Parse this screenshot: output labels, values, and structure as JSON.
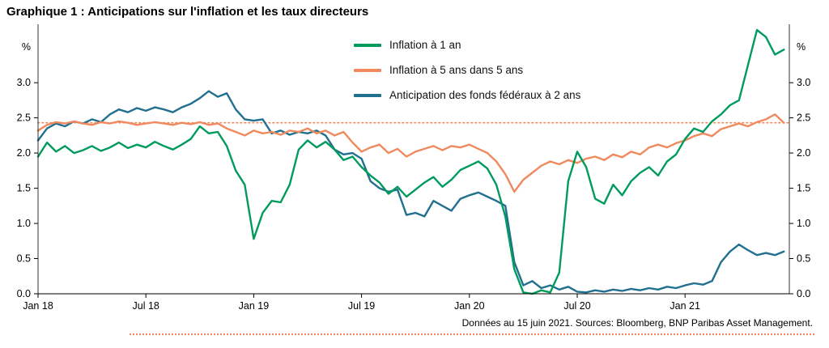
{
  "title": "Graphique 1 : Anticipations sur l'inflation et les taux directeurs",
  "footnote": "Données au 15 juin 2021. Sources: Bloomberg, BNP Paribas Asset Management.",
  "colors": {
    "green": "#009b5d",
    "orange": "#f08a5e",
    "blue": "#21708f",
    "axis": "#000000"
  },
  "chart_data": {
    "type": "line",
    "title": "Graphique 1 : Anticipations sur l'inflation et les taux directeurs",
    "x_unit": "months since Jan 2018",
    "x_start": 0,
    "x_step": 0.5,
    "xlim": [
      0,
      41.8
    ],
    "ylim": [
      0,
      3.83
    ],
    "y_unit": "%",
    "grid": false,
    "legend_position": "top-center-inside",
    "x_ticks": [
      {
        "pos": 0,
        "label": "Jan 18"
      },
      {
        "pos": 6,
        "label": "Jul 18"
      },
      {
        "pos": 12,
        "label": "Jan 19"
      },
      {
        "pos": 18,
        "label": "Jul 19"
      },
      {
        "pos": 24,
        "label": "Jan 20"
      },
      {
        "pos": 30,
        "label": "Jul 20"
      },
      {
        "pos": 36,
        "label": "Jan 21"
      }
    ],
    "y_ticks": [
      {
        "v": 0.0,
        "label": "0.0"
      },
      {
        "v": 0.5,
        "label": "0.5"
      },
      {
        "v": 1.0,
        "label": "1.0"
      },
      {
        "v": 1.5,
        "label": "1.5"
      },
      {
        "v": 2.0,
        "label": "2.0"
      },
      {
        "v": 2.5,
        "label": "2.5"
      },
      {
        "v": 3.0,
        "label": "3.0"
      }
    ],
    "reference_line": {
      "value": 2.43,
      "style": "dotted",
      "color": "#f08a5e"
    },
    "series": [
      {
        "name": "Inflation à 1 an",
        "color": "#009b5d",
        "values": [
          1.95,
          2.15,
          2.02,
          2.1,
          2.0,
          2.04,
          2.1,
          2.03,
          2.08,
          2.15,
          2.07,
          2.12,
          2.08,
          2.16,
          2.1,
          2.05,
          2.12,
          2.2,
          2.38,
          2.28,
          2.3,
          2.1,
          1.75,
          1.55,
          0.78,
          1.15,
          1.32,
          1.3,
          1.55,
          2.05,
          2.18,
          2.08,
          2.16,
          2.05,
          1.9,
          1.95,
          1.8,
          1.68,
          1.58,
          1.42,
          1.52,
          1.38,
          1.48,
          1.58,
          1.66,
          1.52,
          1.62,
          1.76,
          1.82,
          1.88,
          1.78,
          1.55,
          1.1,
          0.35,
          0.02,
          0.0,
          0.05,
          0.02,
          0.3,
          1.6,
          2.02,
          1.8,
          1.35,
          1.28,
          1.55,
          1.4,
          1.6,
          1.72,
          1.8,
          1.68,
          1.88,
          1.98,
          2.2,
          2.35,
          2.3,
          2.45,
          2.55,
          2.68,
          2.75,
          3.25,
          3.75,
          3.65,
          3.4,
          3.47
        ]
      },
      {
        "name": "Inflation à 5 ans dans 5 ans",
        "color": "#f08a5e",
        "values": [
          2.32,
          2.4,
          2.44,
          2.42,
          2.45,
          2.42,
          2.4,
          2.44,
          2.42,
          2.45,
          2.43,
          2.4,
          2.42,
          2.44,
          2.42,
          2.4,
          2.43,
          2.41,
          2.44,
          2.4,
          2.42,
          2.35,
          2.3,
          2.25,
          2.32,
          2.28,
          2.3,
          2.26,
          2.32,
          2.3,
          2.35,
          2.28,
          2.32,
          2.25,
          2.3,
          2.15,
          2.02,
          2.08,
          2.12,
          2.0,
          2.06,
          1.95,
          2.02,
          2.06,
          2.1,
          2.04,
          2.1,
          2.08,
          2.12,
          2.06,
          2.0,
          1.88,
          1.7,
          1.45,
          1.62,
          1.72,
          1.82,
          1.88,
          1.84,
          1.9,
          1.86,
          1.92,
          1.95,
          1.9,
          1.98,
          1.94,
          2.02,
          1.98,
          2.08,
          2.12,
          2.08,
          2.14,
          2.18,
          2.24,
          2.28,
          2.24,
          2.34,
          2.38,
          2.42,
          2.38,
          2.44,
          2.48,
          2.55,
          2.43
        ]
      },
      {
        "name": "Anticipation des fonds fédéraux à 2 ans",
        "color": "#21708f",
        "values": [
          2.18,
          2.35,
          2.42,
          2.38,
          2.45,
          2.42,
          2.48,
          2.44,
          2.55,
          2.62,
          2.58,
          2.64,
          2.6,
          2.65,
          2.62,
          2.58,
          2.65,
          2.7,
          2.78,
          2.88,
          2.8,
          2.85,
          2.62,
          2.48,
          2.46,
          2.48,
          2.28,
          2.32,
          2.26,
          2.3,
          2.28,
          2.32,
          2.25,
          2.05,
          1.98,
          2.0,
          1.92,
          1.6,
          1.5,
          1.45,
          1.48,
          1.12,
          1.15,
          1.1,
          1.32,
          1.25,
          1.18,
          1.35,
          1.4,
          1.44,
          1.38,
          1.32,
          1.25,
          0.45,
          0.12,
          0.18,
          0.08,
          0.12,
          0.06,
          0.1,
          0.03,
          0.02,
          0.05,
          0.03,
          0.06,
          0.04,
          0.07,
          0.05,
          0.08,
          0.06,
          0.1,
          0.08,
          0.12,
          0.15,
          0.13,
          0.18,
          0.45,
          0.6,
          0.7,
          0.62,
          0.55,
          0.58,
          0.55,
          0.6
        ]
      }
    ]
  }
}
